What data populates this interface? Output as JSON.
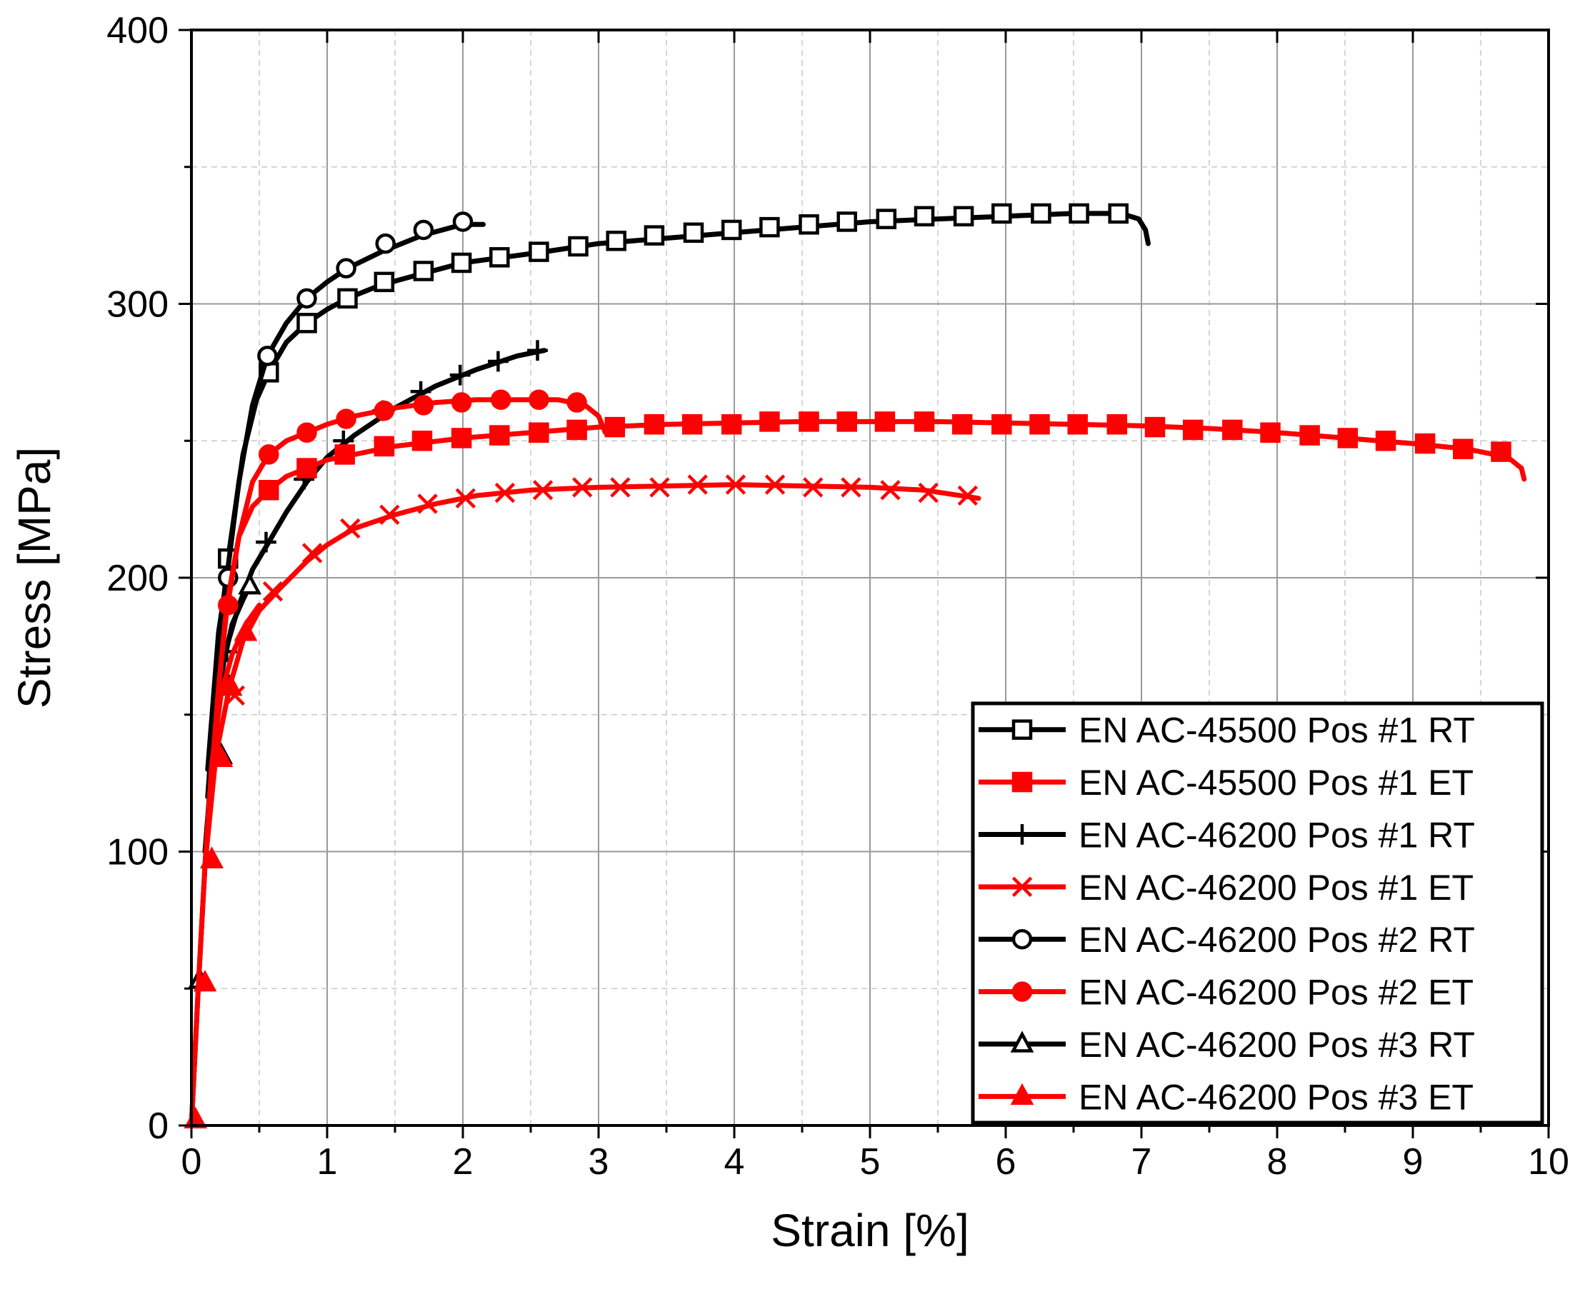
{
  "chart_data": {
    "type": "line",
    "title": "",
    "xlabel": "Strain [%]",
    "ylabel": "Stress [MPa]",
    "xlim": [
      0,
      10
    ],
    "ylim": [
      0,
      400
    ],
    "xticks": [
      0,
      1,
      2,
      3,
      4,
      5,
      6,
      7,
      8,
      9,
      10
    ],
    "yticks": [
      0,
      100,
      200,
      300,
      400
    ],
    "grid": true,
    "legend_position": "bottom-right",
    "series": [
      {
        "name": "EN AC-45500 Pos #1 RT",
        "color": "#000000",
        "marker": "square-open",
        "points": [
          [
            0.12,
            120
          ],
          [
            0.2,
            175
          ],
          [
            0.27,
            207
          ],
          [
            0.38,
            245
          ],
          [
            0.48,
            265
          ],
          [
            0.57,
            275
          ],
          [
            0.7,
            286
          ],
          [
            0.85,
            293
          ],
          [
            1.0,
            298
          ],
          [
            1.15,
            302
          ],
          [
            1.4,
            307
          ],
          [
            1.7,
            311
          ],
          [
            2.0,
            315
          ],
          [
            2.3,
            317
          ],
          [
            2.6,
            319
          ],
          [
            3.0,
            322
          ],
          [
            3.5,
            324
          ],
          [
            4.0,
            326
          ],
          [
            4.5,
            328
          ],
          [
            5.0,
            330
          ],
          [
            5.5,
            331
          ],
          [
            6.0,
            332
          ],
          [
            6.5,
            333
          ],
          [
            6.85,
            333
          ],
          [
            6.98,
            331
          ],
          [
            7.03,
            327
          ],
          [
            7.05,
            322
          ]
        ],
        "marker_points": [
          [
            0.27,
            207
          ],
          [
            0.57,
            275
          ],
          [
            0.85,
            293
          ],
          [
            1.15,
            302
          ],
          [
            1.42,
            308
          ],
          [
            1.71,
            312
          ],
          [
            1.99,
            315
          ],
          [
            2.27,
            317
          ],
          [
            2.56,
            319
          ],
          [
            2.85,
            321
          ],
          [
            3.13,
            323
          ],
          [
            3.41,
            325
          ],
          [
            3.7,
            326
          ],
          [
            3.98,
            327
          ],
          [
            4.26,
            328
          ],
          [
            4.55,
            329
          ],
          [
            4.83,
            330
          ],
          [
            5.12,
            331
          ],
          [
            5.4,
            332
          ],
          [
            5.69,
            332
          ],
          [
            5.97,
            333
          ],
          [
            6.26,
            333
          ],
          [
            6.54,
            333
          ],
          [
            6.83,
            333
          ]
        ]
      },
      {
        "name": "EN AC-45500 Pos #1 ET",
        "color": "#ff0000",
        "marker": "square-filled",
        "points": [
          [
            0.12,
            110
          ],
          [
            0.2,
            160
          ],
          [
            0.26,
            190
          ],
          [
            0.35,
            215
          ],
          [
            0.45,
            226
          ],
          [
            0.57,
            232
          ],
          [
            0.7,
            237
          ],
          [
            0.85,
            240
          ],
          [
            1.0,
            243
          ],
          [
            1.2,
            245
          ],
          [
            1.5,
            248
          ],
          [
            2.0,
            251
          ],
          [
            2.5,
            253
          ],
          [
            3.0,
            255
          ],
          [
            3.5,
            256
          ],
          [
            4.0,
            256.5
          ],
          [
            4.5,
            257
          ],
          [
            5.0,
            257
          ],
          [
            5.5,
            257
          ],
          [
            6.0,
            256.5
          ],
          [
            6.5,
            256
          ],
          [
            7.0,
            255.5
          ],
          [
            7.5,
            254.5
          ],
          [
            8.0,
            253
          ],
          [
            8.5,
            251
          ],
          [
            9.0,
            249
          ],
          [
            9.4,
            247
          ],
          [
            9.7,
            244
          ],
          [
            9.8,
            240
          ],
          [
            9.82,
            236
          ]
        ],
        "marker_points": [
          [
            0.57,
            232
          ],
          [
            0.85,
            240
          ],
          [
            1.13,
            245
          ],
          [
            1.42,
            248
          ],
          [
            1.7,
            250
          ],
          [
            1.99,
            251
          ],
          [
            2.27,
            252
          ],
          [
            2.56,
            253
          ],
          [
            2.84,
            254
          ],
          [
            3.12,
            255
          ],
          [
            3.41,
            256
          ],
          [
            3.69,
            256
          ],
          [
            3.98,
            256
          ],
          [
            4.26,
            257
          ],
          [
            4.55,
            257
          ],
          [
            4.83,
            257
          ],
          [
            5.11,
            257
          ],
          [
            5.4,
            257
          ],
          [
            5.68,
            256
          ],
          [
            5.97,
            256
          ],
          [
            6.25,
            256
          ],
          [
            6.53,
            256
          ],
          [
            6.82,
            256
          ],
          [
            7.1,
            255
          ],
          [
            7.38,
            254
          ],
          [
            7.67,
            254
          ],
          [
            7.95,
            253
          ],
          [
            8.24,
            252
          ],
          [
            8.52,
            251
          ],
          [
            8.8,
            250
          ],
          [
            9.09,
            249
          ],
          [
            9.37,
            247
          ],
          [
            9.65,
            246
          ]
        ]
      },
      {
        "name": "EN AC-46200 Pos #1 RT",
        "color": "#000000",
        "marker": "plus",
        "points": [
          [
            0.1,
            100
          ],
          [
            0.18,
            150
          ],
          [
            0.25,
            173
          ],
          [
            0.35,
            190
          ],
          [
            0.45,
            203
          ],
          [
            0.57,
            213
          ],
          [
            0.7,
            224
          ],
          [
            0.85,
            235
          ],
          [
            1.0,
            244
          ],
          [
            1.2,
            252
          ],
          [
            1.5,
            262
          ],
          [
            1.8,
            270
          ],
          [
            2.1,
            276
          ],
          [
            2.4,
            281
          ],
          [
            2.6,
            283
          ]
        ],
        "marker_points": [
          [
            0.26,
            173
          ],
          [
            0.55,
            213
          ],
          [
            0.83,
            236
          ],
          [
            1.12,
            250
          ],
          [
            1.41,
            261
          ],
          [
            1.69,
            268
          ],
          [
            1.98,
            274
          ],
          [
            2.26,
            279
          ],
          [
            2.55,
            283
          ]
        ]
      },
      {
        "name": "EN AC-46200 Pos #1 ET",
        "color": "#ff0000",
        "marker": "cross",
        "points": [
          [
            0.1,
            95
          ],
          [
            0.18,
            135
          ],
          [
            0.28,
            160
          ],
          [
            0.38,
            177
          ],
          [
            0.5,
            188
          ],
          [
            0.65,
            196
          ],
          [
            0.85,
            206
          ],
          [
            1.0,
            212
          ],
          [
            1.2,
            218
          ],
          [
            1.5,
            223
          ],
          [
            1.8,
            227
          ],
          [
            2.1,
            230
          ],
          [
            2.5,
            232
          ],
          [
            3.0,
            233
          ],
          [
            3.5,
            233.5
          ],
          [
            4.0,
            234
          ],
          [
            4.5,
            233.5
          ],
          [
            5.0,
            233
          ],
          [
            5.4,
            232
          ],
          [
            5.8,
            229
          ]
        ],
        "marker_points": [
          [
            0.32,
            157
          ],
          [
            0.6,
            195
          ],
          [
            0.89,
            209
          ],
          [
            1.17,
            218
          ],
          [
            1.46,
            223
          ],
          [
            1.74,
            227
          ],
          [
            2.02,
            229
          ],
          [
            2.31,
            231
          ],
          [
            2.59,
            232
          ],
          [
            2.88,
            233
          ],
          [
            3.16,
            233
          ],
          [
            3.45,
            233
          ],
          [
            3.73,
            234
          ],
          [
            4.01,
            234
          ],
          [
            4.3,
            234
          ],
          [
            4.58,
            233
          ],
          [
            4.86,
            233
          ],
          [
            5.15,
            232
          ],
          [
            5.43,
            231
          ],
          [
            5.72,
            230
          ]
        ]
      },
      {
        "name": "EN AC-46200 Pos #2 RT",
        "color": "#000000",
        "marker": "circle-open",
        "points": [
          [
            0.12,
            130
          ],
          [
            0.2,
            180
          ],
          [
            0.26,
            200
          ],
          [
            0.35,
            235
          ],
          [
            0.45,
            263
          ],
          [
            0.56,
            281
          ],
          [
            0.7,
            293
          ],
          [
            0.85,
            302
          ],
          [
            1.0,
            308
          ],
          [
            1.15,
            313
          ],
          [
            1.4,
            319
          ],
          [
            1.7,
            325
          ],
          [
            2.0,
            329
          ],
          [
            2.15,
            329
          ]
        ],
        "marker_points": [
          [
            0.27,
            200
          ],
          [
            0.56,
            281
          ],
          [
            0.85,
            302
          ],
          [
            1.14,
            313
          ],
          [
            1.43,
            322
          ],
          [
            1.71,
            327
          ],
          [
            2.0,
            330
          ]
        ]
      },
      {
        "name": "EN AC-46200 Pos #2 ET",
        "color": "#ff0000",
        "marker": "circle-filled",
        "points": [
          [
            0.12,
            110
          ],
          [
            0.2,
            160
          ],
          [
            0.26,
            188
          ],
          [
            0.35,
            215
          ],
          [
            0.45,
            235
          ],
          [
            0.57,
            245
          ],
          [
            0.7,
            250
          ],
          [
            0.85,
            253
          ],
          [
            1.0,
            256
          ],
          [
            1.2,
            259
          ],
          [
            1.5,
            262
          ],
          [
            1.8,
            264
          ],
          [
            2.1,
            265
          ],
          [
            2.4,
            265
          ],
          [
            2.7,
            265
          ],
          [
            2.9,
            263
          ],
          [
            3.0,
            259
          ],
          [
            3.05,
            253
          ]
        ],
        "marker_points": [
          [
            0.27,
            190
          ],
          [
            0.57,
            245
          ],
          [
            0.85,
            253
          ],
          [
            1.14,
            258
          ],
          [
            1.42,
            261
          ],
          [
            1.71,
            263
          ],
          [
            1.99,
            264
          ],
          [
            2.28,
            265
          ],
          [
            2.56,
            265
          ],
          [
            2.84,
            264
          ]
        ]
      },
      {
        "name": "EN AC-46200 Pos #3 RT",
        "color": "#000000",
        "marker": "triangle-open",
        "points": [
          [
            0.0,
            0
          ],
          [
            0.05,
            50
          ],
          [
            0.1,
            95
          ],
          [
            0.15,
            132
          ],
          [
            0.22,
            165
          ],
          [
            0.3,
            183
          ],
          [
            0.38,
            192
          ],
          [
            0.43,
            197
          ]
        ],
        "marker_points": [
          [
            0.06,
            53
          ],
          [
            0.15,
            97
          ],
          [
            0.22,
            135
          ],
          [
            0.28,
            160
          ],
          [
            0.43,
            197
          ]
        ]
      },
      {
        "name": "EN AC-46200 Pos #3 ET",
        "color": "#ff0000",
        "marker": "triangle-filled",
        "points": [
          [
            0.0,
            0
          ],
          [
            0.05,
            50
          ],
          [
            0.1,
            95
          ],
          [
            0.15,
            132
          ],
          [
            0.22,
            158
          ],
          [
            0.3,
            172
          ],
          [
            0.4,
            183
          ],
          [
            0.5,
            190
          ]
        ],
        "marker_points": [
          [
            0.03,
            2
          ],
          [
            0.1,
            52
          ],
          [
            0.15,
            97
          ],
          [
            0.22,
            134
          ],
          [
            0.29,
            160
          ],
          [
            0.4,
            180
          ]
        ]
      }
    ]
  }
}
